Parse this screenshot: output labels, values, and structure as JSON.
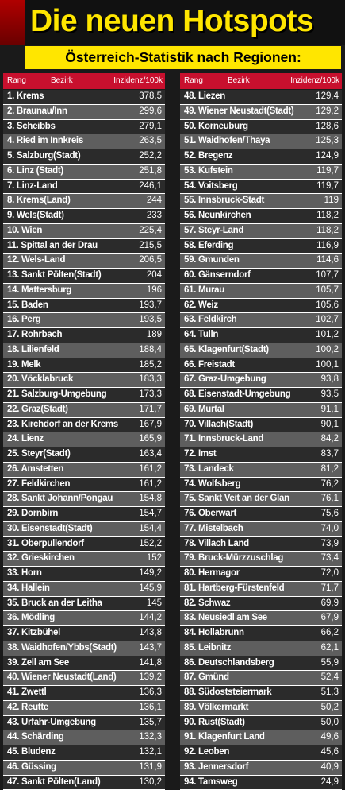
{
  "title": "Die neuen Hotspots",
  "subtitle": "Österreich-Statistik nach Regionen:",
  "headers": {
    "rang": "Rang",
    "bezirk": "Bezirk",
    "inzidenz": "Inzidenz/100k"
  },
  "left_rows": [
    {
      "label": "1. Krems",
      "value": "378,5"
    },
    {
      "label": "2. Braunau/Inn",
      "value": "299,6"
    },
    {
      "label": "3. Scheibbs",
      "value": "279,1"
    },
    {
      "label": "4. Ried im Innkreis",
      "value": "263,5"
    },
    {
      "label": "5. Salzburg(Stadt)",
      "value": "252,2"
    },
    {
      "label": "6. Linz (Stadt)",
      "value": "251,8"
    },
    {
      "label": "7. Linz-Land",
      "value": "246,1"
    },
    {
      "label": "8. Krems(Land)",
      "value": "244"
    },
    {
      "label": "9. Wels(Stadt)",
      "value": "233"
    },
    {
      "label": "10. Wien",
      "value": "225,4"
    },
    {
      "label": "11. Spittal an der Drau",
      "value": "215,5"
    },
    {
      "label": "12. Wels-Land",
      "value": "206,5"
    },
    {
      "label": "13. Sankt Pölten(Stadt)",
      "value": "204"
    },
    {
      "label": "14. Mattersburg",
      "value": "196"
    },
    {
      "label": "15. Baden",
      "value": "193,7"
    },
    {
      "label": "16. Perg",
      "value": "193,5"
    },
    {
      "label": "17. Rohrbach",
      "value": "189"
    },
    {
      "label": "18. Lilienfeld",
      "value": "188,4"
    },
    {
      "label": "19. Melk",
      "value": "185,2"
    },
    {
      "label": "20. Vöcklabruck",
      "value": "183,3"
    },
    {
      "label": "21. Salzburg-Umgebung",
      "value": "173,3"
    },
    {
      "label": "22. Graz(Stadt)",
      "value": "171,7"
    },
    {
      "label": "23. Kirchdorf an der Krems",
      "value": "167,9"
    },
    {
      "label": "24. Lienz",
      "value": "165,9"
    },
    {
      "label": "25. Steyr(Stadt)",
      "value": "163,4"
    },
    {
      "label": "26. Amstetten",
      "value": "161,2"
    },
    {
      "label": "27. Feldkirchen",
      "value": "161,2"
    },
    {
      "label": "28. Sankt Johann/Pongau",
      "value": "154,8"
    },
    {
      "label": "29. Dornbirn",
      "value": "154,7"
    },
    {
      "label": "30. Eisenstadt(Stadt)",
      "value": "154,4"
    },
    {
      "label": "31. Oberpullendorf",
      "value": "152,2"
    },
    {
      "label": "32. Grieskirchen",
      "value": "152"
    },
    {
      "label": "33. Horn",
      "value": "149,2"
    },
    {
      "label": "34. Hallein",
      "value": "145,9"
    },
    {
      "label": "35. Bruck an der Leitha",
      "value": "145"
    },
    {
      "label": "36. Mödling",
      "value": "144,2"
    },
    {
      "label": "37. Kitzbühel",
      "value": "143,8"
    },
    {
      "label": "38. Waidhofen/Ybbs(Stadt)",
      "value": "143,7"
    },
    {
      "label": "39. Zell am See",
      "value": "141,8"
    },
    {
      "label": "40. Wiener Neustadt(Land)",
      "value": "139,2"
    },
    {
      "label": "41. Zwettl",
      "value": "136,3"
    },
    {
      "label": "42. Reutte",
      "value": "136,1"
    },
    {
      "label": "43. Urfahr-Umgebung",
      "value": "135,7"
    },
    {
      "label": "44. Schärding",
      "value": "132,3"
    },
    {
      "label": "45. Bludenz",
      "value": "132,1"
    },
    {
      "label": "46. Güssing",
      "value": "131,9"
    },
    {
      "label": "47. Sankt Pölten(Land)",
      "value": "130,2"
    }
  ],
  "right_rows": [
    {
      "label": "48. Liezen",
      "value": "129,4"
    },
    {
      "label": "49. Wiener Neustadt(Stadt)",
      "value": "129,2"
    },
    {
      "label": "50. Korneuburg",
      "value": "128,6"
    },
    {
      "label": "51. Waidhofen/Thaya",
      "value": "125,3"
    },
    {
      "label": "52. Bregenz",
      "value": "124,9"
    },
    {
      "label": "53. Kufstein",
      "value": "119,7"
    },
    {
      "label": "54. Voitsberg",
      "value": "119,7"
    },
    {
      "label": "55. Innsbruck-Stadt",
      "value": "119"
    },
    {
      "label": "56. Neunkirchen",
      "value": "118,2"
    },
    {
      "label": "57. Steyr-Land",
      "value": "118,2"
    },
    {
      "label": "58. Eferding",
      "value": "116,9"
    },
    {
      "label": "59. Gmunden",
      "value": "114,6"
    },
    {
      "label": "60. Gänserndorf",
      "value": "107,7"
    },
    {
      "label": "61. Murau",
      "value": "105,7"
    },
    {
      "label": "62. Weiz",
      "value": "105,6"
    },
    {
      "label": "63. Feldkirch",
      "value": "102,7"
    },
    {
      "label": "64. Tulln",
      "value": "101,2"
    },
    {
      "label": "65. Klagenfurt(Stadt)",
      "value": "100,2"
    },
    {
      "label": "66. Freistadt",
      "value": "100,1"
    },
    {
      "label": "67. Graz-Umgebung",
      "value": "93,8"
    },
    {
      "label": "68. Eisenstadt-Umgebung",
      "value": "93,5"
    },
    {
      "label": "69. Murtal",
      "value": "91,1"
    },
    {
      "label": "70. Villach(Stadt)",
      "value": "90,1"
    },
    {
      "label": "71. Innsbruck-Land",
      "value": "84,2"
    },
    {
      "label": "72. Imst",
      "value": "83,7"
    },
    {
      "label": "73. Landeck",
      "value": "81,2"
    },
    {
      "label": "74. Wolfsberg",
      "value": "76,2"
    },
    {
      "label": "75. Sankt Veit an der Glan",
      "value": "76,1"
    },
    {
      "label": "76. Oberwart",
      "value": "75,6"
    },
    {
      "label": "77. Mistelbach",
      "value": "74,0"
    },
    {
      "label": "78. Villach Land",
      "value": "73,9"
    },
    {
      "label": "79. Bruck-Mürzzuschlag",
      "value": "73,4"
    },
    {
      "label": "80. Hermagor",
      "value": "72,0"
    },
    {
      "label": "81. Hartberg-Fürstenfeld",
      "value": "71,7"
    },
    {
      "label": "82. Schwaz",
      "value": "69,9"
    },
    {
      "label": "83. Neusiedl am See",
      "value": "67,9"
    },
    {
      "label": "84. Hollabrunn",
      "value": "66,2"
    },
    {
      "label": "85. Leibnitz",
      "value": "62,1"
    },
    {
      "label": "86. Deutschlandsberg",
      "value": "55,9"
    },
    {
      "label": "87. Gmünd",
      "value": "52,4"
    },
    {
      "label": "88. Südoststeiermark",
      "value": "51,3"
    },
    {
      "label": "89. Völkermarkt",
      "value": "50,2"
    },
    {
      "label": "90. Rust(Stadt)",
      "value": "50,0"
    },
    {
      "label": "91. Klagenfurt Land",
      "value": "49,6"
    },
    {
      "label": "92. Leoben",
      "value": "45,6"
    },
    {
      "label": "93. Jennersdorf",
      "value": "40,9"
    },
    {
      "label": "94. Tamsweg",
      "value": "24,9"
    }
  ]
}
